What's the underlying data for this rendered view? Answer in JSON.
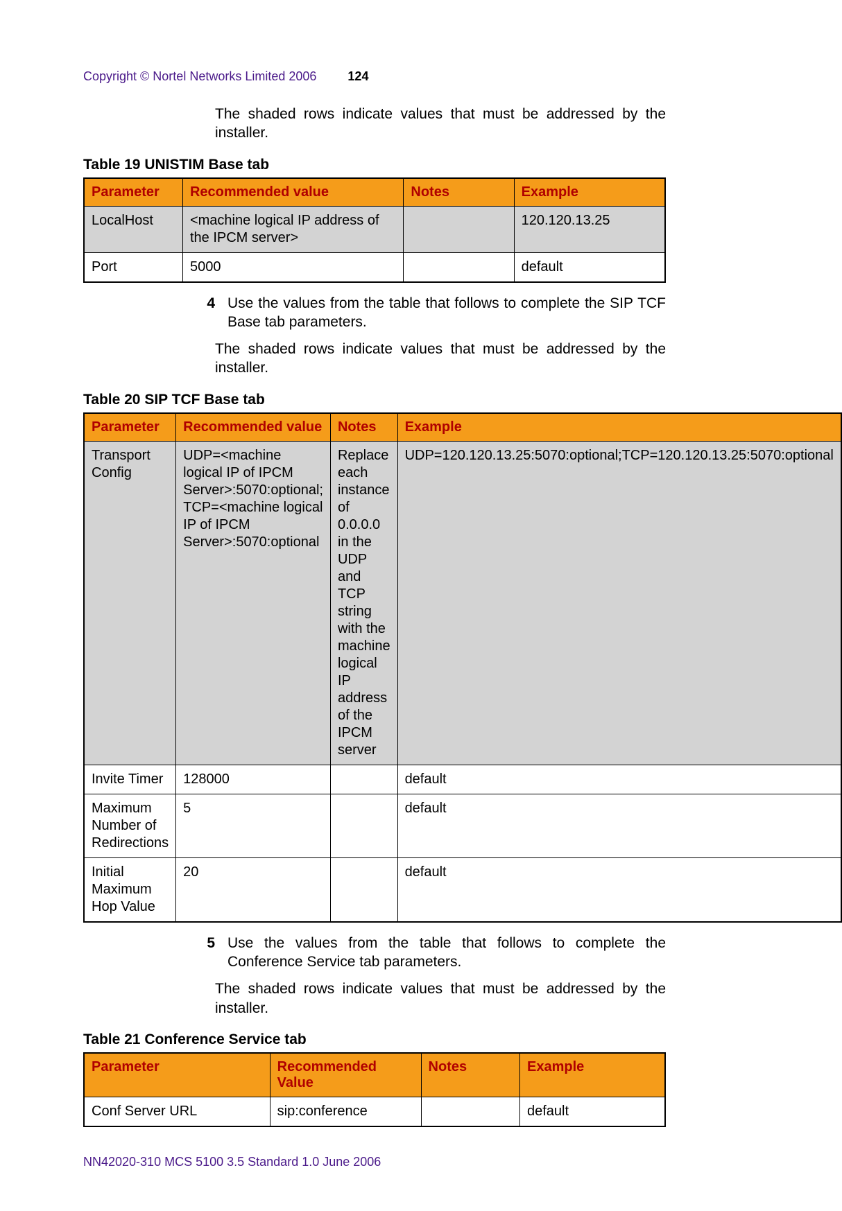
{
  "header": {
    "copyright": "Copyright © Nortel Networks Limited 2006",
    "page_number": "124"
  },
  "colors": {
    "header_bg": "#f59c1a",
    "header_text": "#b00000",
    "shaded_row": "#d3d3d3",
    "copyright_color": "#4b1a8a"
  },
  "intro_text_1": "The shaded rows indicate values that must be addressed by the installer.",
  "table19": {
    "caption": "Table 19  UNISTIM Base tab",
    "columns": [
      "Parameter",
      "Recommended value",
      "Notes",
      "Example"
    ],
    "col_widths_pct": [
      17,
      38,
      19,
      26
    ],
    "rows": [
      {
        "cells": [
          "LocalHost",
          "<machine logical IP address of the  IPCM server>",
          "",
          "120.120.13.25"
        ],
        "shaded": true
      },
      {
        "cells": [
          "Port",
          "5000",
          "",
          "default"
        ],
        "shaded": false
      }
    ]
  },
  "step4": {
    "num": "4",
    "text": "Use the values from the table that follows to complete the SIP TCF Base tab parameters."
  },
  "intro_text_2": "The shaded rows indicate values that must be addressed by the installer.",
  "table20": {
    "caption": "Table 20  SIP TCF Base tab",
    "columns": [
      "Parameter",
      "Recommended value",
      "Notes",
      "Example"
    ],
    "col_widths_pct": [
      26,
      27,
      25,
      22
    ],
    "rows": [
      {
        "cells": [
          "Transport Config",
          "UDP=<machine logical IP of IPCM Server>:5070:optional; TCP=<machine logical IP of IPCM Server>:5070:optional",
          "Replace each instance of 0.0.0.0 in the UDP and TCP string with the machine logical IP address of the IPCM server",
          "UDP=120.120.13.25:5070:optional;TCP=120.120.13.25:5070:optional"
        ],
        "shaded": true
      },
      {
        "cells": [
          "Invite Timer",
          "128000",
          "",
          "default"
        ],
        "shaded": false
      },
      {
        "cells": [
          "Maximum Number of Redirections",
          "5",
          "",
          "default"
        ],
        "shaded": false
      },
      {
        "cells": [
          "Initial Maximum Hop Value",
          "20",
          "",
          "default"
        ],
        "shaded": false
      }
    ]
  },
  "step5": {
    "num": "5",
    "text": "Use the values from the table that follows to complete the Conference Service tab parameters."
  },
  "intro_text_3": "The shaded rows indicate values that must be addressed by the installer.",
  "table21": {
    "caption": "Table 21  Conference Service tab",
    "columns": [
      "Parameter",
      "Recommended Value",
      "Notes",
      "Example"
    ],
    "col_widths_pct": [
      32,
      26,
      17,
      25
    ],
    "rows": [
      {
        "cells": [
          "Conf Server URL",
          "sip:conference",
          "",
          "default"
        ],
        "shaded": false
      }
    ]
  },
  "footer": "NN42020-310   MCS 5100 3.5   Standard  1.0   June 2006"
}
